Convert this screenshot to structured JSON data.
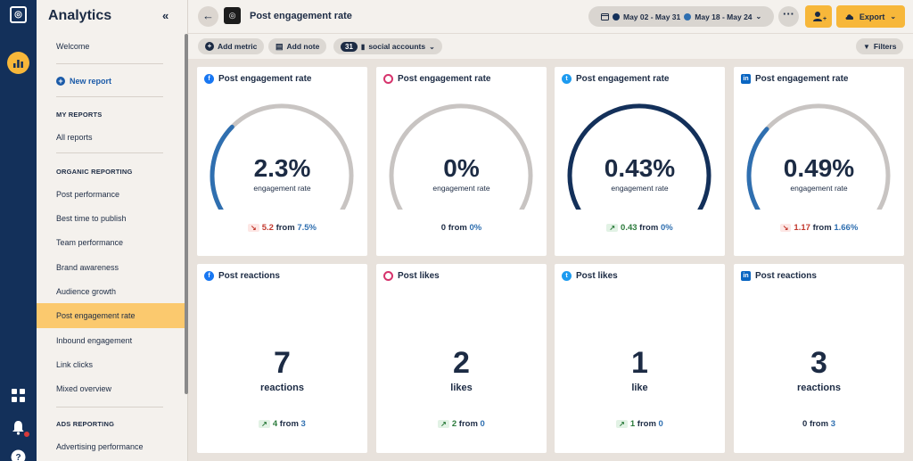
{
  "rail": {
    "logo_icon": "owl-logo-icon",
    "active_icon": "analytics-bar-chart-icon",
    "bottom_icons": [
      "apps-grid-icon",
      "bell-icon",
      "help-icon"
    ]
  },
  "sidebar": {
    "title": "Analytics",
    "collapse_icon": "double-chevron-left-icon",
    "welcome": "Welcome",
    "new_report": "New report",
    "my_reports_heading": "MY REPORTS",
    "all_reports": "All reports",
    "organic_heading": "ORGANIC REPORTING",
    "organic_items": [
      "Post performance",
      "Best time to publish",
      "Team performance",
      "Brand awareness",
      "Audience growth",
      "Post engagement rate",
      "Inbound engagement",
      "Link clicks",
      "Mixed overview"
    ],
    "active_item": "Post engagement rate",
    "ads_heading": "ADS REPORTING",
    "ads_items": [
      "Advertising performance"
    ]
  },
  "header": {
    "title": "Post engagement rate",
    "date_range_1": "May 02 - May 31",
    "date_range_2": "May 18 - May 24",
    "export_label": "Export"
  },
  "toolbar": {
    "add_metric": "Add metric",
    "add_note": "Add note",
    "accounts_count": "31",
    "accounts_label": "social accounts",
    "filters": "Filters"
  },
  "colors": {
    "navy": "#13305a",
    "accent_yellow": "#f7b73a",
    "gauge_blue": "#2f6fb0",
    "gauge_gray": "#c8c4c2",
    "down_red": "#c33a2f",
    "up_green": "#2b7a3b"
  },
  "cards_top": [
    {
      "network": "facebook",
      "icon": "facebook-icon",
      "title": "Post engagement rate",
      "value": "2.3%",
      "label": "engagement rate",
      "trend": "down",
      "change": "5.2",
      "from_word": "from",
      "previous": "7.5%",
      "gauge_fraction": 0.31,
      "gauge_color": "#2f6fb0"
    },
    {
      "network": "instagram",
      "icon": "instagram-icon",
      "title": "Post engagement rate",
      "value": "0%",
      "label": "engagement rate",
      "trend": "none",
      "change": "0",
      "from_word": "from",
      "previous": "0%",
      "gauge_fraction": 0.0,
      "gauge_color": "#2f6fb0"
    },
    {
      "network": "twitter",
      "icon": "twitter-icon",
      "title": "Post engagement rate",
      "value": "0.43%",
      "label": "engagement rate",
      "trend": "up",
      "change": "0.43",
      "from_word": "from",
      "previous": "0%",
      "gauge_fraction": 1.0,
      "gauge_color": "#13305a"
    },
    {
      "network": "linkedin",
      "icon": "linkedin-icon",
      "title": "Post engagement rate",
      "value": "0.49%",
      "label": "engagement rate",
      "trend": "down",
      "change": "1.17",
      "from_word": "from",
      "previous": "1.66%",
      "gauge_fraction": 0.3,
      "gauge_color": "#2f6fb0"
    }
  ],
  "cards_bottom": [
    {
      "network": "facebook",
      "icon": "facebook-icon",
      "title": "Post reactions",
      "value": "7",
      "label": "reactions",
      "trend": "up",
      "change": "4",
      "from_word": "from",
      "previous": "3"
    },
    {
      "network": "instagram",
      "icon": "instagram-icon",
      "title": "Post likes",
      "value": "2",
      "label": "likes",
      "trend": "up",
      "change": "2",
      "from_word": "from",
      "previous": "0"
    },
    {
      "network": "twitter",
      "icon": "twitter-icon",
      "title": "Post likes",
      "value": "1",
      "label": "like",
      "trend": "up",
      "change": "1",
      "from_word": "from",
      "previous": "0"
    },
    {
      "network": "linkedin",
      "icon": "linkedin-icon",
      "title": "Post reactions",
      "value": "3",
      "label": "reactions",
      "trend": "none",
      "change": "0",
      "from_word": "from",
      "previous": "3"
    }
  ]
}
